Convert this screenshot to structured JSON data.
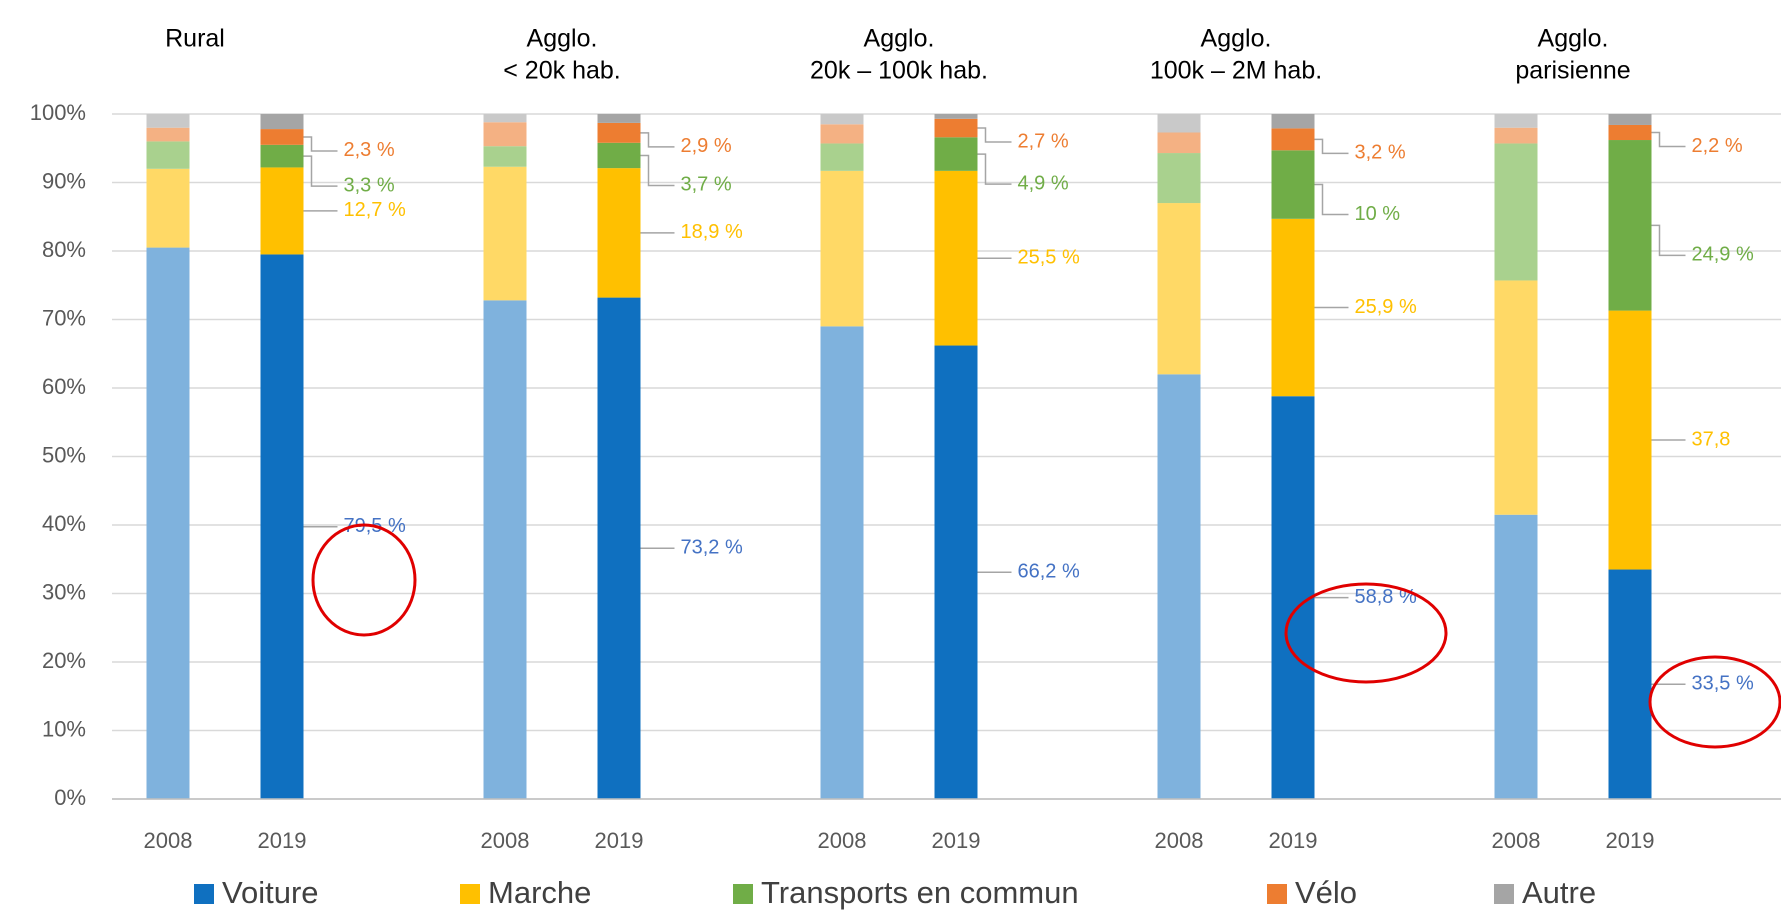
{
  "chart_data": {
    "type": "stacked_bar",
    "groups": [
      [
        "Rural"
      ],
      [
        "Agglo.",
        "< 20k hab."
      ],
      [
        "Agglo.",
        "20k – 100k hab."
      ],
      [
        "Agglo.",
        "100k – 2M hab."
      ],
      [
        "Agglo.",
        "parisienne"
      ]
    ],
    "categories": [
      "2008",
      "2019",
      "2008",
      "2019",
      "2008",
      "2019",
      "2008",
      "2019",
      "2008",
      "2019"
    ],
    "series": [
      {
        "name": "Voiture",
        "color": "#0f70c0",
        "light_color": "#7fb2dd",
        "label_color": "#4472c4",
        "values": [
          80.5,
          79.5,
          72.8,
          73.2,
          69,
          66.2,
          62,
          58.8,
          41.5,
          33.5
        ],
        "value_labels": [
          null,
          "79,5 %",
          null,
          "73,2 %",
          null,
          "66,2 %",
          null,
          "58,8 %",
          null,
          "33,5 %"
        ]
      },
      {
        "name": "Marche",
        "color": "#ffc000",
        "light_color": "#ffd966",
        "label_color": "#ffc000",
        "values": [
          11.5,
          12.7,
          19.5,
          18.9,
          22.7,
          25.5,
          25,
          25.9,
          34.2,
          37.8
        ],
        "value_labels": [
          null,
          "12,7 %",
          null,
          "18,9 %",
          null,
          "25,5 %",
          null,
          "25,9 %",
          null,
          "37,8"
        ]
      },
      {
        "name": "Transports en commun",
        "color": "#70ad47",
        "light_color": "#a9d18e",
        "label_color": "#70ad47",
        "values": [
          4,
          3.3,
          3,
          3.7,
          4,
          4.9,
          7.3,
          10,
          20,
          24.9
        ],
        "value_labels": [
          null,
          "3,3 %",
          null,
          "3,7 %",
          null,
          "4,9 %",
          null,
          "10 %",
          null,
          "24,9 %"
        ]
      },
      {
        "name": "Vélo",
        "color": "#ed7d31",
        "light_color": "#f4b183",
        "label_color": "#ed7d31",
        "values": [
          2,
          2.3,
          3.5,
          2.9,
          2.8,
          2.7,
          3,
          3.2,
          2.3,
          2.2
        ],
        "value_labels": [
          null,
          "2,3 %",
          null,
          "2,9 %",
          null,
          "2,7 %",
          null,
          "3,2 %",
          null,
          "2,2 %"
        ]
      },
      {
        "name": "Autre",
        "color": "#a5a5a5",
        "light_color": "#c9c9c9",
        "values": [
          2,
          2.2,
          1.2,
          1.3,
          1.5,
          0.7,
          2.7,
          2.1,
          2,
          1.6
        ]
      }
    ],
    "ylim": [
      0,
      100
    ],
    "yticks": [
      {
        "value": 0,
        "label": "0%"
      },
      {
        "value": 10,
        "label": "10%"
      },
      {
        "value": 20,
        "label": "20%"
      },
      {
        "value": 30,
        "label": "30%"
      },
      {
        "value": 40,
        "label": "40%"
      },
      {
        "value": 50,
        "label": "50%"
      },
      {
        "value": 60,
        "label": "60%"
      },
      {
        "value": 70,
        "label": "70%"
      },
      {
        "value": 80,
        "label": "80%"
      },
      {
        "value": 90,
        "label": "90%"
      },
      {
        "value": 100,
        "label": "100%"
      }
    ],
    "grid": true,
    "legend": "bottom"
  }
}
